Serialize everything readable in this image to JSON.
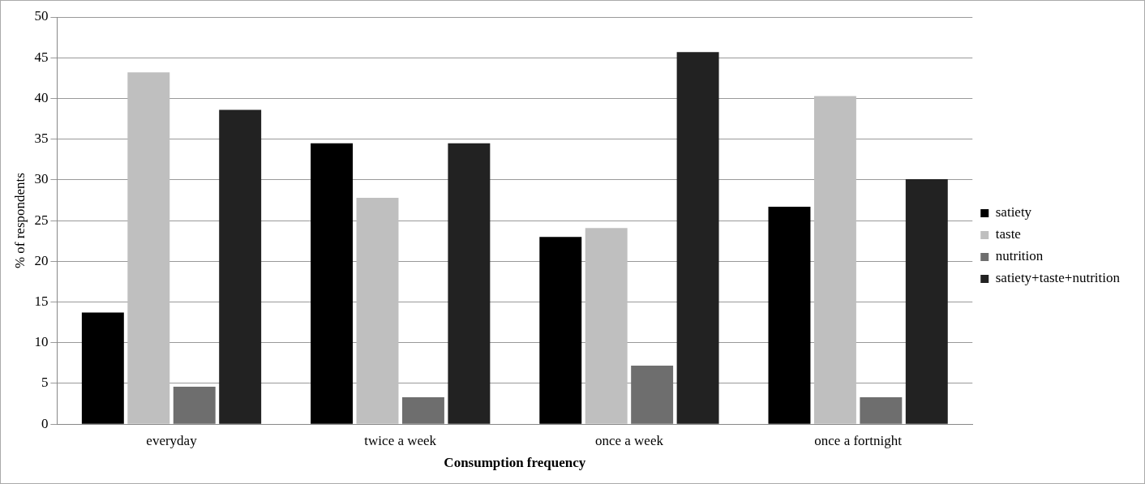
{
  "chart_data": {
    "type": "bar",
    "xlabel": "Consumption frequency",
    "ylabel": "% of respondents",
    "categories": [
      "everyday",
      "twice a week",
      "once a week",
      "once a fortnight"
    ],
    "series": [
      {
        "name": "satiety",
        "color": "#000000",
        "values": [
          13.7,
          34.5,
          23.0,
          26.7
        ]
      },
      {
        "name": "taste",
        "color": "#bfbfbf",
        "values": [
          43.2,
          27.8,
          24.1,
          40.3
        ]
      },
      {
        "name": "nutrition",
        "color": "#6e6e6e",
        "values": [
          4.6,
          3.3,
          7.2,
          3.3
        ]
      },
      {
        "name": "satiety+taste+nutrition",
        "color": "#222222",
        "values": [
          38.6,
          34.5,
          45.7,
          30.1
        ]
      }
    ],
    "ylim": [
      0,
      50
    ],
    "yticks": [
      0,
      5,
      10,
      15,
      20,
      25,
      30,
      35,
      40,
      45,
      50
    ],
    "grid": "y",
    "legend": "right"
  }
}
